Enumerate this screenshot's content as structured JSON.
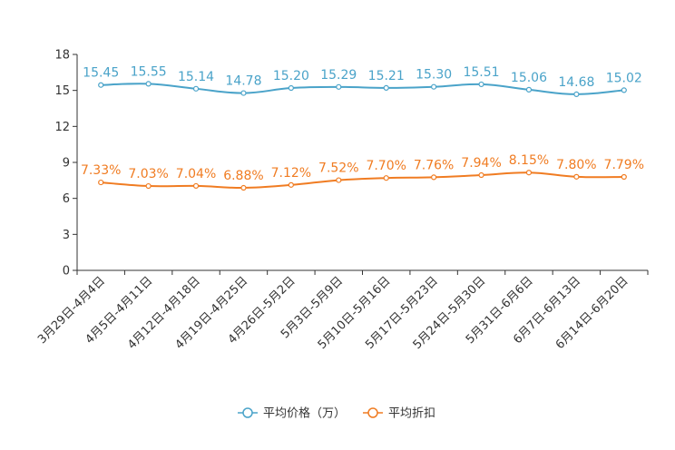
{
  "chart_data": {
    "type": "line",
    "title": "",
    "xlabel": "",
    "ylabel": "",
    "ylim": [
      0,
      18
    ],
    "yticks": [
      0,
      3,
      6,
      9,
      12,
      15,
      18
    ],
    "grid": false,
    "legend_position": "bottom",
    "categories": [
      "3月29日-4月4日",
      "4月5日-4月11日",
      "4月12日-4月18日",
      "4月19日-4月25日",
      "4月26日-5月2日",
      "5月3日-5月9日",
      "5月10日-5月16日",
      "5月17日-5月23日",
      "5月24日-5月30日",
      "5月31日-6月6日",
      "6月7日-6月13日",
      "6月14日-6月20日"
    ],
    "series": [
      {
        "name": "平均价格（万）",
        "color": "#4aa3c9",
        "values": [
          15.45,
          15.55,
          15.14,
          14.78,
          15.2,
          15.29,
          15.21,
          15.3,
          15.51,
          15.06,
          14.68,
          15.02
        ],
        "labels": [
          "15.45",
          "15.55",
          "15.14",
          "14.78",
          "15.20",
          "15.29",
          "15.21",
          "15.30",
          "15.51",
          "15.06",
          "14.68",
          "15.02"
        ]
      },
      {
        "name": "平均折扣",
        "color": "#f07c22",
        "plot_values": [
          7.33,
          7.03,
          7.04,
          6.88,
          7.12,
          7.52,
          7.7,
          7.76,
          7.94,
          8.15,
          7.8,
          7.79
        ],
        "labels": [
          "7.33%",
          "7.03%",
          "7.04%",
          "6.88%",
          "7.12%",
          "7.52%",
          "7.70%",
          "7.76%",
          "7.94%",
          "8.15%",
          "7.80%",
          "7.79%"
        ]
      }
    ]
  }
}
